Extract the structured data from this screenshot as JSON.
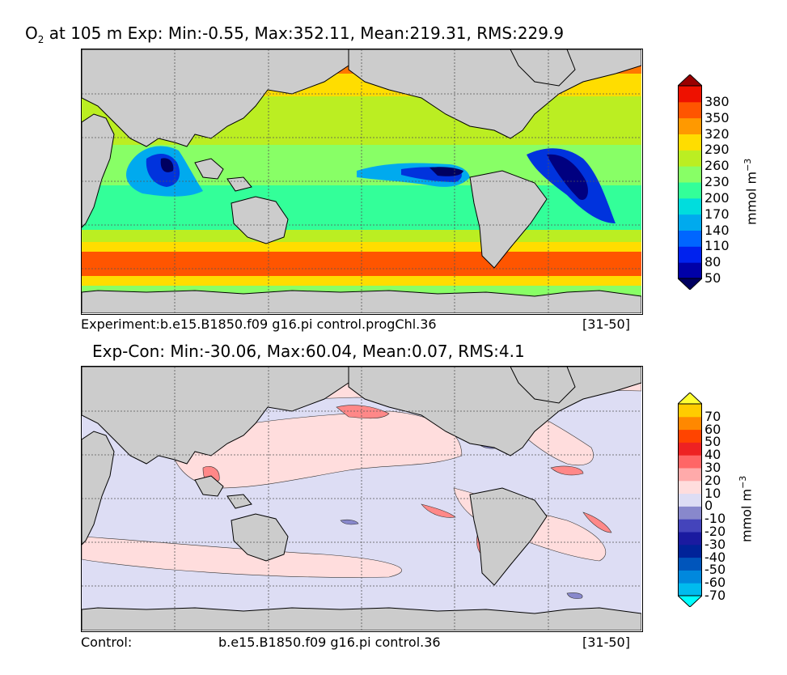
{
  "panel_top": {
    "title_var": "O",
    "title_sub": "2",
    "title_rest": " at 105 m Exp: Min:-0.55, Max:352.11, Mean:219.31, RMS:229.9",
    "caption_left": "Experiment:b.e15.B1850.f09 g16.pi control.progChl.36",
    "caption_right": "[31-50]"
  },
  "panel_bottom": {
    "title": "Exp-Con: Min:-30.06, Max:60.04, Mean:0.07, RMS:4.1",
    "caption_left": "Control:",
    "caption_mid": "b.e15.B1850.f09 g16.pi control.36",
    "caption_right": "[31-50]"
  },
  "chart_data": [
    {
      "type": "heatmap",
      "title": "O2 at 105 m Exp: Min:-0.55, Max:352.11, Mean:219.31, RMS:229.9",
      "colorbar_label": "mmol m^-3",
      "levels": [
        50,
        80,
        110,
        140,
        170,
        200,
        230,
        260,
        290,
        320,
        350,
        380
      ],
      "tick_labels": [
        "380",
        "350",
        "320",
        "290",
        "260",
        "230",
        "200",
        "170",
        "140",
        "110",
        "80",
        "50"
      ],
      "colors": [
        "#000060",
        "#0000a8",
        "#0022ee",
        "#0066ff",
        "#00aaee",
        "#00dddd",
        "#33ff99",
        "#88ff66",
        "#bbee22",
        "#ffdd00",
        "#ff9900",
        "#ff5500",
        "#ee1100",
        "#990000"
      ],
      "stats": {
        "min": -0.55,
        "max": 352.11,
        "mean": 219.31,
        "rms": 229.9
      },
      "period": "[31-50]"
    },
    {
      "type": "heatmap",
      "title": "Exp-Con: Min:-30.06, Max:60.04, Mean:0.07, RMS:4.1",
      "colorbar_label": "mmol m^-3",
      "levels": [
        -70,
        -60,
        -50,
        -40,
        -30,
        -20,
        -10,
        0,
        10,
        20,
        30,
        40,
        50,
        60,
        70
      ],
      "tick_labels": [
        "70",
        "60",
        "50",
        "40",
        "30",
        "20",
        "10",
        "0",
        "-10",
        "-20",
        "-30",
        "-40",
        "-50",
        "-60",
        "-70"
      ],
      "colors": [
        "#00ffff",
        "#00bbee",
        "#0088dd",
        "#0055bb",
        "#002299",
        "#1a1aa0",
        "#4444bb",
        "#8888cc",
        "#ddddf4",
        "#ffdddd",
        "#ffaaaa",
        "#ff6666",
        "#ee2222",
        "#ff4400",
        "#ff8800",
        "#ffcc00",
        "#ffff33"
      ],
      "stats": {
        "min": -30.06,
        "max": 60.04,
        "mean": 0.07,
        "rms": 4.1
      },
      "period": "[31-50]"
    }
  ]
}
